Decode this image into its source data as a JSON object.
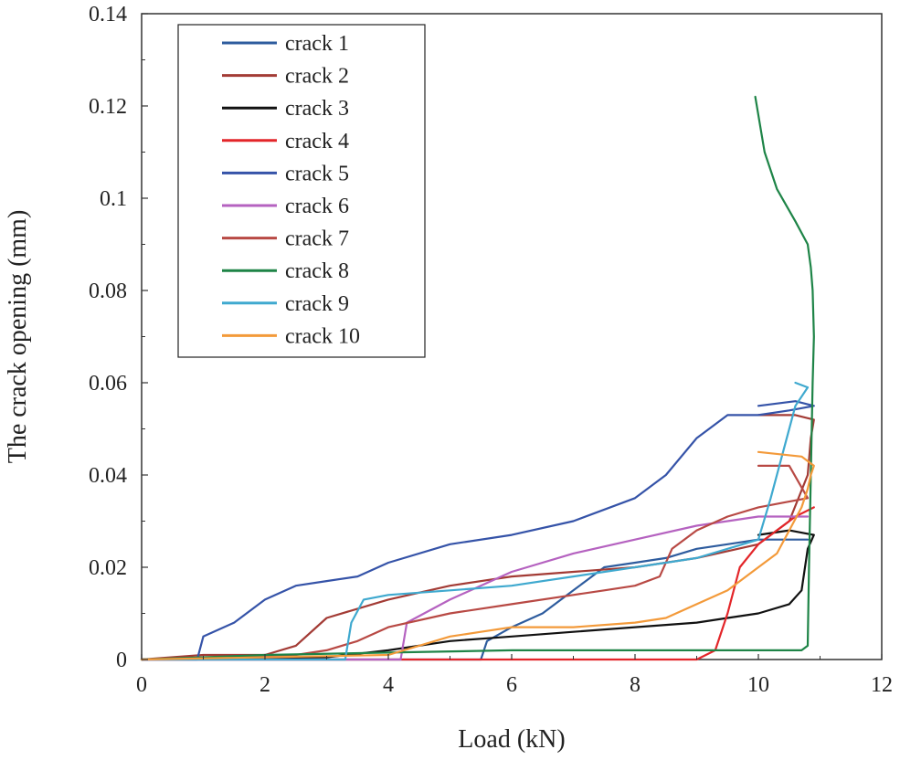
{
  "chart_data": {
    "type": "line",
    "title": "",
    "xlabel": "Load (kN)",
    "ylabel": "The crack opening (mm)",
    "xlim": [
      0,
      12
    ],
    "ylim": [
      0,
      0.14
    ],
    "xticks": [
      0,
      2,
      4,
      6,
      8,
      10,
      12
    ],
    "yticks": [
      0,
      0.02,
      0.04,
      0.06,
      0.08,
      0.1,
      0.12,
      0.14
    ],
    "xtick_labels": [
      "0",
      "2",
      "4",
      "6",
      "8",
      "10",
      "12"
    ],
    "ytick_labels": [
      "0",
      "0.02",
      "0.04",
      "0.06",
      "0.08",
      "0.1",
      "0.12",
      "0.14"
    ],
    "grid": false,
    "legend_position": "top-left",
    "series": [
      {
        "name": "crack 1",
        "color": "#2E5C9E",
        "x": [
          0,
          5.5,
          5.6,
          6.0,
          6.5,
          7.0,
          7.5,
          8.0,
          8.5,
          9.0,
          9.5,
          10.0,
          10.5,
          10.8
        ],
        "y": [
          0,
          0,
          0.004,
          0.007,
          0.01,
          0.015,
          0.02,
          0.021,
          0.022,
          0.024,
          0.025,
          0.026,
          0.026,
          0.026
        ]
      },
      {
        "name": "crack 2",
        "color": "#A33B35",
        "x": [
          0,
          1.0,
          2.0,
          2.5,
          3.0,
          4.0,
          5.0,
          6.0,
          7.0,
          8.0,
          9.0,
          10.0,
          10.5,
          10.8,
          10.85,
          10.9,
          10.6,
          10.0
        ],
        "y": [
          0,
          0.001,
          0.001,
          0.003,
          0.009,
          0.013,
          0.016,
          0.018,
          0.019,
          0.02,
          0.022,
          0.025,
          0.03,
          0.04,
          0.048,
          0.052,
          0.053,
          0.053
        ]
      },
      {
        "name": "crack 3",
        "color": "#111111",
        "x": [
          0,
          3.0,
          4.0,
          5.0,
          6.0,
          7.0,
          8.0,
          9.0,
          9.5,
          10.0,
          10.5,
          10.7,
          10.8,
          10.9,
          10.5,
          10.0
        ],
        "y": [
          0,
          0.0005,
          0.002,
          0.004,
          0.005,
          0.006,
          0.007,
          0.008,
          0.009,
          0.01,
          0.012,
          0.015,
          0.024,
          0.027,
          0.028,
          0.027
        ]
      },
      {
        "name": "crack 4",
        "color": "#E3262A",
        "x": [
          0,
          5.0,
          9.0,
          9.3,
          9.5,
          9.7,
          10.0,
          10.3,
          10.6,
          10.9
        ],
        "y": [
          0,
          0,
          0,
          0.002,
          0.01,
          0.02,
          0.025,
          0.028,
          0.031,
          0.033
        ]
      },
      {
        "name": "crack 5",
        "color": "#3553A8",
        "x": [
          0,
          0.9,
          1.0,
          1.5,
          2.0,
          2.5,
          3.0,
          3.5,
          4.0,
          5.0,
          6.0,
          7.0,
          8.0,
          8.5,
          9.0,
          9.5,
          10.0,
          10.5,
          10.9,
          10.6,
          10.0
        ],
        "y": [
          0,
          0,
          0.005,
          0.008,
          0.013,
          0.016,
          0.017,
          0.018,
          0.021,
          0.025,
          0.027,
          0.03,
          0.035,
          0.04,
          0.048,
          0.053,
          0.053,
          0.054,
          0.055,
          0.056,
          0.055
        ]
      },
      {
        "name": "crack 6",
        "color": "#B562C0",
        "x": [
          0,
          4.2,
          4.3,
          5.0,
          6.0,
          7.0,
          8.0,
          9.0,
          10.0,
          10.8
        ],
        "y": [
          0,
          0,
          0.008,
          0.013,
          0.019,
          0.023,
          0.026,
          0.029,
          0.031,
          0.031
        ]
      },
      {
        "name": "crack 7",
        "color": "#B84944",
        "x": [
          0,
          2.5,
          3.0,
          3.5,
          4.0,
          5.0,
          6.0,
          7.0,
          7.5,
          8.0,
          8.4,
          8.6,
          9.0,
          9.5,
          10.0,
          10.4,
          10.8,
          10.5,
          10.0
        ],
        "y": [
          0,
          0.001,
          0.002,
          0.004,
          0.007,
          0.01,
          0.012,
          0.014,
          0.015,
          0.016,
          0.018,
          0.024,
          0.028,
          0.031,
          0.033,
          0.034,
          0.035,
          0.042,
          0.042
        ]
      },
      {
        "name": "crack 8",
        "color": "#1E8447",
        "x": [
          0,
          2.0,
          4.0,
          6.0,
          8.0,
          10.0,
          10.7,
          10.8,
          10.82,
          10.85,
          10.88,
          10.9,
          10.88,
          10.85,
          10.8,
          10.6,
          10.3,
          10.1,
          10.0,
          9.95
        ],
        "y": [
          0,
          0.001,
          0.0015,
          0.002,
          0.002,
          0.002,
          0.002,
          0.003,
          0.02,
          0.04,
          0.06,
          0.07,
          0.08,
          0.085,
          0.09,
          0.095,
          0.102,
          0.11,
          0.118,
          0.122
        ]
      },
      {
        "name": "crack 9",
        "color": "#3FA9CF",
        "x": [
          0,
          3.3,
          3.4,
          3.6,
          4.0,
          5.0,
          6.0,
          7.0,
          8.0,
          8.5,
          9.0,
          9.5,
          10.0,
          10.2,
          10.4,
          10.6,
          10.8,
          10.6
        ],
        "y": [
          0,
          0,
          0.008,
          0.013,
          0.014,
          0.015,
          0.016,
          0.018,
          0.02,
          0.021,
          0.022,
          0.024,
          0.026,
          0.035,
          0.045,
          0.055,
          0.059,
          0.06
        ]
      },
      {
        "name": "crack 10",
        "color": "#F39A3A",
        "x": [
          0,
          4.0,
          5.0,
          5.5,
          6.0,
          7.0,
          8.0,
          8.5,
          9.0,
          9.5,
          10.0,
          10.3,
          10.5,
          10.7,
          10.8,
          10.85,
          10.9,
          10.7,
          10.0
        ],
        "y": [
          0,
          0.001,
          0.005,
          0.006,
          0.007,
          0.007,
          0.008,
          0.009,
          0.012,
          0.015,
          0.02,
          0.023,
          0.028,
          0.033,
          0.037,
          0.04,
          0.042,
          0.044,
          0.045
        ]
      }
    ]
  }
}
